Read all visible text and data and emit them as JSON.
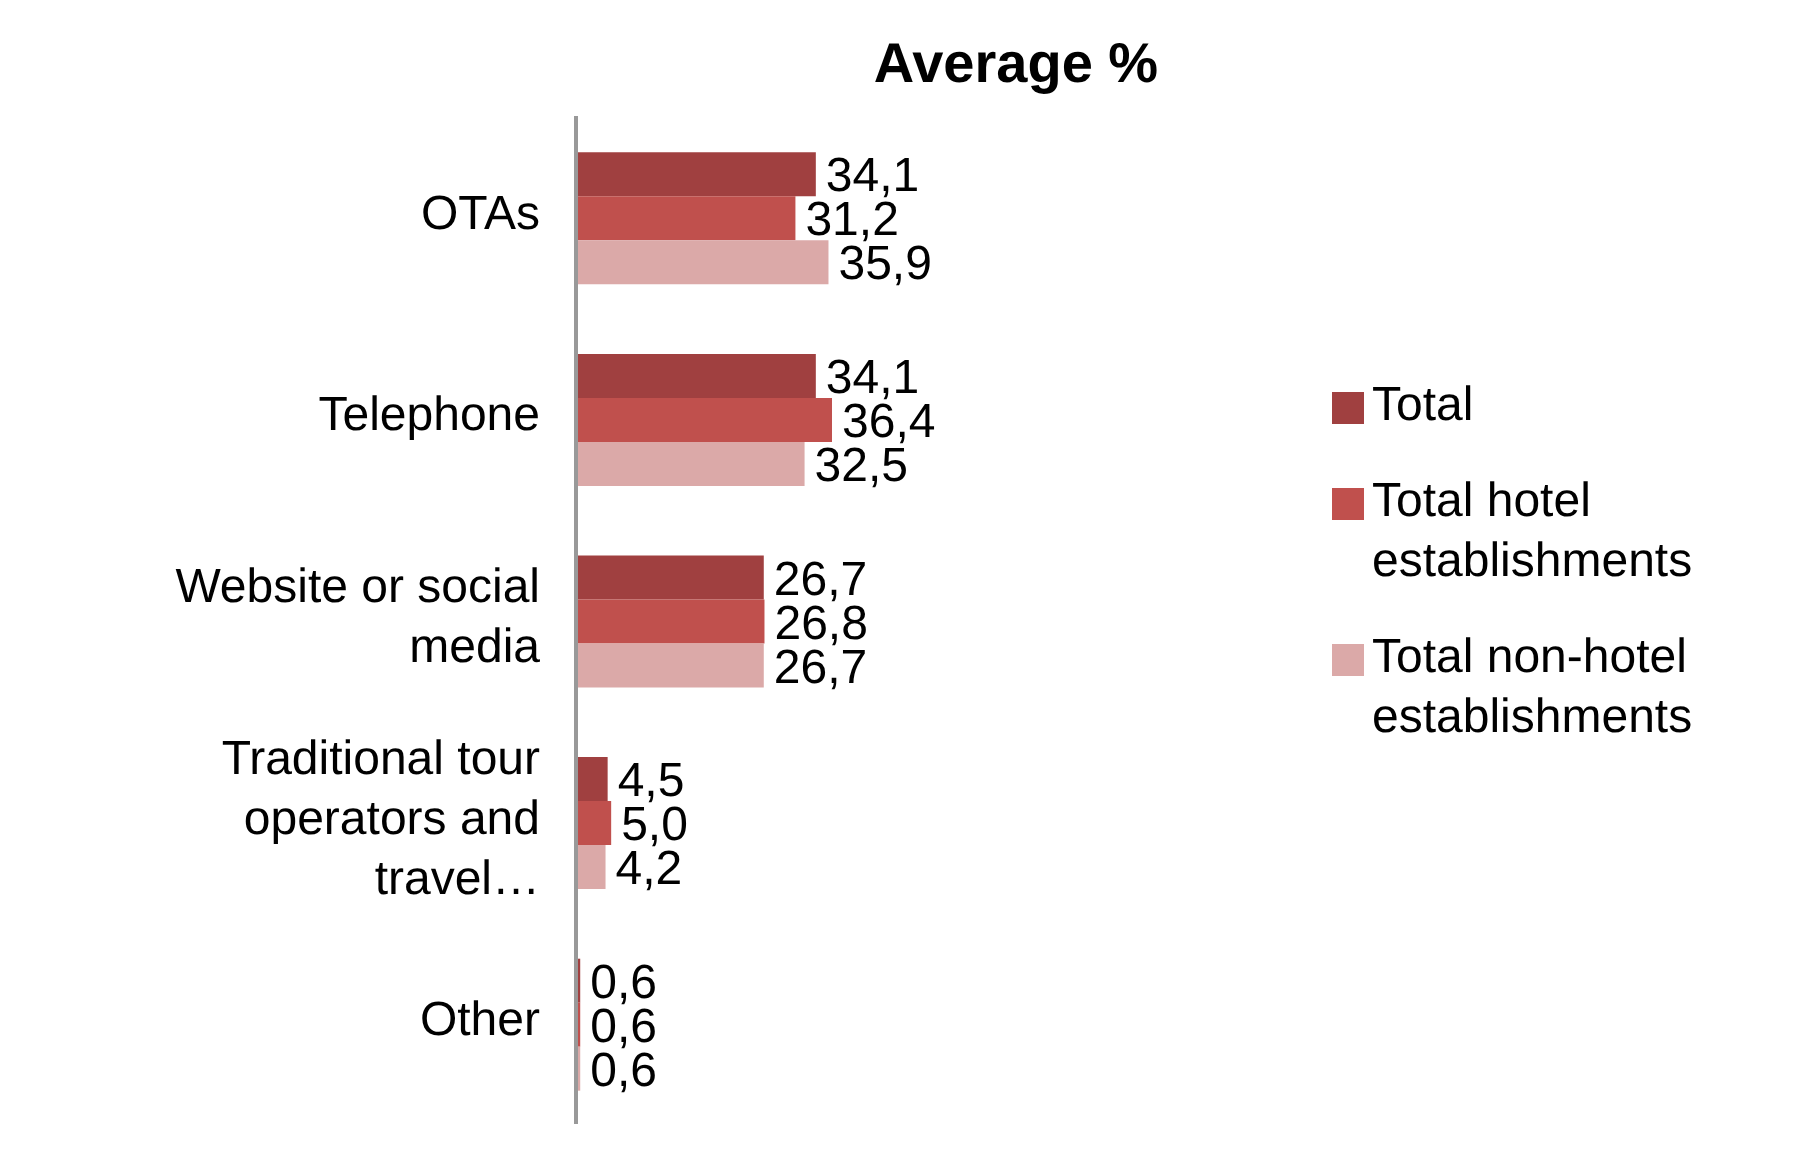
{
  "chart_data": {
    "type": "bar",
    "orientation": "horizontal",
    "title": "Average %",
    "categories": [
      "OTAs",
      "Telephone",
      "Website or social media",
      "Traditional tour operators and travel…",
      "Other"
    ],
    "series": [
      {
        "name": "Total",
        "color": "#a04040",
        "values": [
          34.1,
          34.1,
          26.7,
          4.5,
          0.6
        ],
        "value_labels": [
          "34,1",
          "34,1",
          "26,7",
          "4,5",
          "0,6"
        ]
      },
      {
        "name": "Total hotel establishments",
        "color": "#c0504d",
        "values": [
          31.2,
          36.4,
          26.8,
          5.0,
          0.6
        ],
        "value_labels": [
          "31,2",
          "36,4",
          "26,8",
          "5,0",
          "0,6"
        ]
      },
      {
        "name": "Total non-hotel establishments",
        "color": "#dba9a8",
        "values": [
          35.9,
          32.5,
          26.7,
          4.2,
          0.6
        ],
        "value_labels": [
          "35,9",
          "32,5",
          "26,7",
          "4,2",
          "0,6"
        ]
      }
    ],
    "legend": "right",
    "grid": false
  }
}
